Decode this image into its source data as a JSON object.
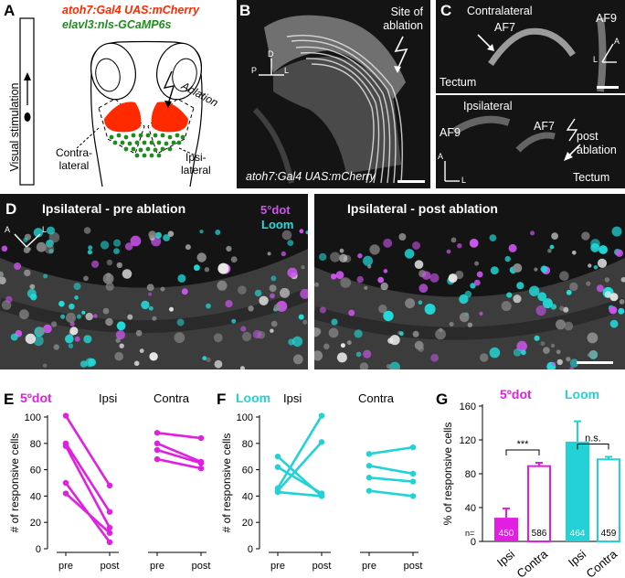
{
  "panel_letters": {
    "a": "A",
    "b": "B",
    "c": "C",
    "d": "D",
    "e": "E",
    "f": "F",
    "g": "G"
  },
  "panel_a": {
    "transgene_red": "atoh7:Gal4 UAS:mCherry",
    "transgene_green": "elavl3:nls-GCaMP6s",
    "visual_stimulation": "Visual stimulation",
    "ablation": "Ablation",
    "contralateral_1": "Contra-",
    "contralateral_2": "lateral",
    "ipsilateral_1": "Ipsi-",
    "ipsilateral_2": "lateral",
    "colors": {
      "red": "#ff2a00",
      "green": "#1e8c1e"
    }
  },
  "panel_b": {
    "site_1": "Site of",
    "site_2": "ablation",
    "caption": "atoh7:Gal4 UAS:mCherry",
    "axis_d": "D",
    "axis_p": "P",
    "axis_l": "L"
  },
  "panel_c": {
    "top": {
      "contralateral": "Contralateral",
      "af7": "AF7",
      "af9": "AF9",
      "tectum": "Tectum",
      "axis_a": "A",
      "axis_l": "L"
    },
    "bottom": {
      "ipsilateral": "Ipsilateral",
      "af9": "AF9",
      "af7": "AF7",
      "post_1": "post",
      "post_2": "ablation",
      "tectum": "Tectum",
      "axis_a": "A",
      "axis_l": "L"
    }
  },
  "panel_d": {
    "left_title": "Ipsilateral - pre ablation",
    "right_title": "Ipsilateral - post ablation",
    "legend_dot": "5°dot",
    "legend_loom": "Loom",
    "axis_a": "A",
    "axis_l": "L",
    "colors": {
      "dot": "#cc55ee",
      "loom": "#22dddd"
    }
  },
  "colors": {
    "magenta": "#e21ee2",
    "cyan": "#22d2d6"
  },
  "chart_data": [
    {
      "type": "line",
      "panel": "E",
      "title": "5ºdot",
      "ylabel": "# of responsive cells",
      "ylim": [
        0,
        100
      ],
      "yticks": [
        0,
        20,
        40,
        60,
        80,
        100
      ],
      "groups": [
        {
          "label": "Ipsi",
          "x": [
            "pre",
            "post"
          ],
          "pairs": [
            [
              101,
              48
            ],
            [
              80,
              28
            ],
            [
              78,
              16
            ],
            [
              50,
              5
            ],
            [
              42,
              12
            ]
          ]
        },
        {
          "label": "Contra",
          "x": [
            "pre",
            "post"
          ],
          "pairs": [
            [
              88,
              84
            ],
            [
              80,
              66
            ],
            [
              75,
              65
            ],
            [
              68,
              61
            ]
          ]
        }
      ]
    },
    {
      "type": "line",
      "panel": "F",
      "title": "Loom",
      "ylabel": "# of responsive cells",
      "ylim": [
        0,
        100
      ],
      "yticks": [
        0,
        20,
        40,
        60,
        80,
        100
      ],
      "groups": [
        {
          "label": "Ipsi",
          "x": [
            "pre",
            "post"
          ],
          "pairs": [
            [
              70,
              40
            ],
            [
              62,
              42
            ],
            [
              46,
              101
            ],
            [
              44,
              81
            ],
            [
              43,
              40
            ]
          ]
        },
        {
          "label": "Contra",
          "x": [
            "pre",
            "post"
          ],
          "pairs": [
            [
              72,
              77
            ],
            [
              63,
              57
            ],
            [
              54,
              51
            ],
            [
              44,
              40
            ]
          ]
        }
      ]
    },
    {
      "type": "bar",
      "panel": "G",
      "title": "",
      "ylabel": "% of responsive cells",
      "ylim": [
        0,
        160
      ],
      "yticks": [
        0,
        40,
        80,
        120,
        160
      ],
      "categories": [
        "Ipsi",
        "Contra",
        "Ipsi",
        "Contra"
      ],
      "groups": [
        "5ºdot",
        "Loom"
      ],
      "values": [
        28,
        89,
        118,
        97
      ],
      "errors": [
        11,
        4,
        24,
        3
      ],
      "n": [
        450,
        586,
        464,
        459
      ],
      "n_label": "n=",
      "significance": [
        {
          "label": "***"
        },
        {
          "label": "n.s."
        }
      ]
    }
  ]
}
